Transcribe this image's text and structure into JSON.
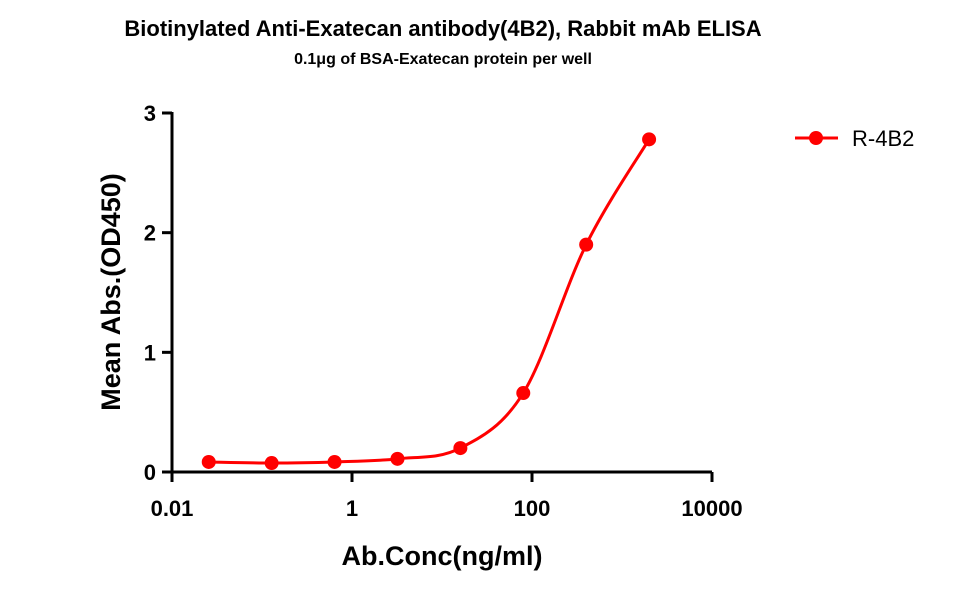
{
  "chart_data": {
    "type": "line",
    "title": "Biotinylated Anti-Exatecan antibody(4B2), Rabbit mAb ELISA",
    "subtitle": "0.1μg of BSA-Exatecan protein per well",
    "x_label": "Ab.Conc(ng/ml)",
    "y_label": "Mean Abs.(OD450)",
    "x_scale": "log",
    "x": [
      0.0256,
      0.128,
      0.64,
      3.2,
      16,
      80,
      400,
      2000
    ],
    "series": [
      {
        "name": "R-4B2",
        "color": "#ff0000",
        "values": [
          0.084,
          0.075,
          0.084,
          0.11,
          0.2,
          0.66,
          1.9,
          2.78
        ]
      }
    ],
    "xlim": [
      0.01,
      10000
    ],
    "xticks": [
      0.01,
      1,
      100,
      10000
    ],
    "ylim": [
      0,
      3
    ],
    "yticks": [
      0,
      1,
      2,
      3
    ],
    "legend": "top-right"
  }
}
